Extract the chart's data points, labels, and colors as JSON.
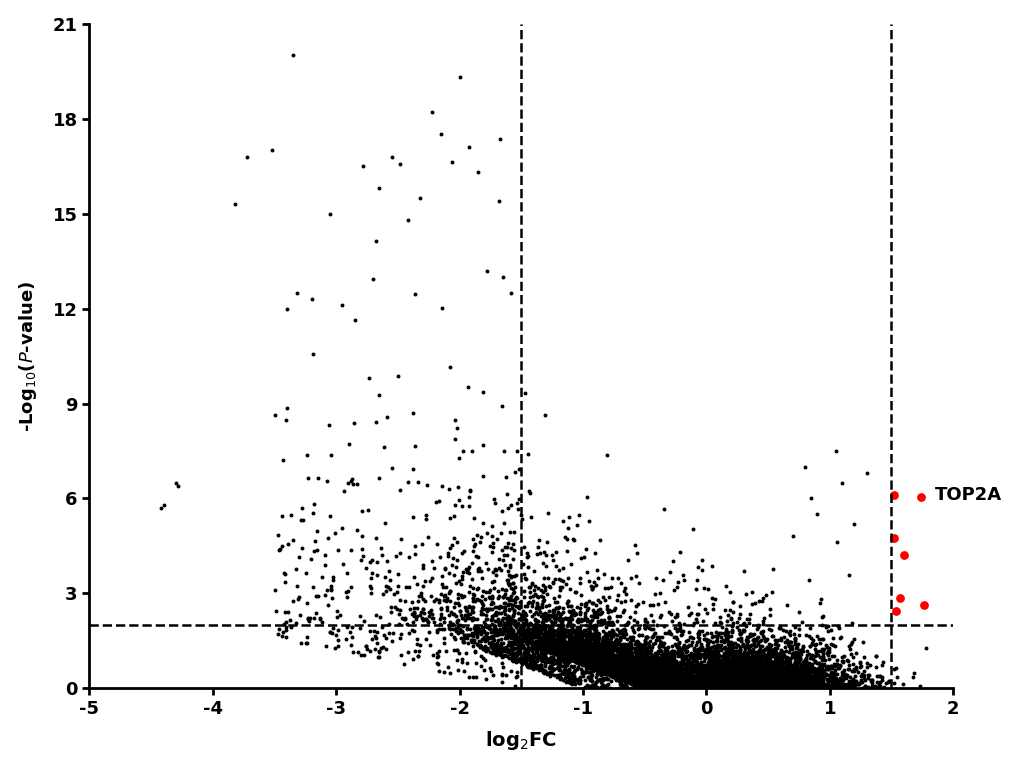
{
  "xlim": [
    -5,
    2
  ],
  "ylim": [
    0,
    21
  ],
  "xticks": [
    -5,
    -4,
    -3,
    -2,
    -1,
    0,
    1,
    2
  ],
  "yticks": [
    0,
    3,
    6,
    9,
    12,
    15,
    18,
    21
  ],
  "xlabel": "log$_2$FC",
  "ylabel": "-Log$_{10}$($P$-value)",
  "vline1": -1.5,
  "vline2": 1.5,
  "hline": 2.0,
  "top2a_label": "TOP2A",
  "red_points": [
    [
      1.52,
      6.1
    ],
    [
      1.74,
      6.05
    ],
    [
      1.52,
      4.75
    ],
    [
      1.6,
      4.2
    ],
    [
      1.57,
      2.85
    ],
    [
      1.76,
      2.65
    ],
    [
      1.54,
      2.45
    ]
  ],
  "black_color": "#000000",
  "red_color": "#ff0000",
  "background_color": "#ffffff",
  "spine_linewidth": 2.0,
  "dashed_linewidth": 1.8,
  "marker_size": 5,
  "seed": 12345
}
